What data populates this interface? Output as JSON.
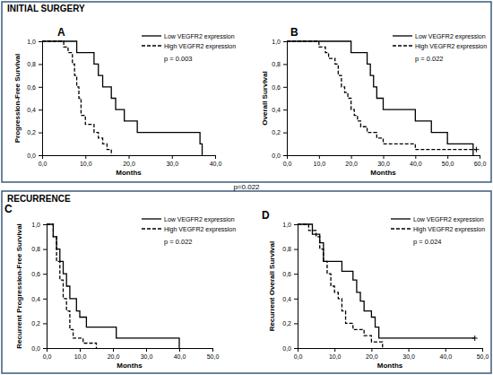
{
  "sections": [
    "INITIAL SURGERY",
    "RECURRENCE"
  ],
  "note": "p=0.022",
  "chart_data": [
    {
      "type": "line",
      "title": "A",
      "y_label": "Progression-Free Survival",
      "x_label": "Months",
      "annotation": "p = 0.003",
      "legend": "top-right",
      "grid": false,
      "xlim": [
        0,
        40
      ],
      "ylim": [
        0,
        1
      ],
      "xticks": [
        {
          "value": 0,
          "label": "0,0"
        },
        {
          "value": 10,
          "label": "10,0"
        },
        {
          "value": 20,
          "label": "20,0"
        },
        {
          "value": 30,
          "label": "30,0"
        },
        {
          "value": 40,
          "label": "40,0"
        }
      ],
      "yticks": [
        {
          "value": 0,
          "label": "0,0"
        },
        {
          "value": 0.2,
          "label": "0,2"
        },
        {
          "value": 0.4,
          "label": "0,4"
        },
        {
          "value": 0.6,
          "label": "0,6"
        },
        {
          "value": 0.8,
          "label": "0,8"
        },
        {
          "value": 1,
          "label": "1,0"
        }
      ],
      "series": [
        {
          "name": "Low VEGFR2 expression",
          "color": "#000000",
          "line_style": "solid",
          "x": [
            0,
            8,
            12,
            13,
            14,
            16,
            17,
            19,
            22,
            36.5,
            37
          ],
          "values": [
            1,
            0.9,
            0.8,
            0.7,
            0.6,
            0.5,
            0.4,
            0.3,
            0.2,
            0.1,
            0
          ]
        },
        {
          "name": "High VEGFR2 expression",
          "color": "#000000",
          "line_style": "dashed",
          "x": [
            0,
            5,
            6,
            7,
            7.5,
            8,
            8.5,
            9,
            10,
            12,
            13,
            14,
            15,
            16
          ],
          "values": [
            1,
            0.95,
            0.9,
            0.8,
            0.7,
            0.6,
            0.5,
            0.35,
            0.27,
            0.2,
            0.15,
            0.1,
            0.05,
            0
          ]
        }
      ]
    },
    {
      "type": "line",
      "title": "B",
      "y_label": "Overall Survival",
      "x_label": "Months",
      "annotation": "p = 0.022",
      "legend": "top-right",
      "grid": false,
      "xlim": [
        0,
        60
      ],
      "ylim": [
        0,
        1
      ],
      "xticks": [
        {
          "value": 0,
          "label": "0,0"
        },
        {
          "value": 10,
          "label": "10,0"
        },
        {
          "value": 20,
          "label": "20,0"
        },
        {
          "value": 30,
          "label": "30,0"
        },
        {
          "value": 40,
          "label": "40,0"
        },
        {
          "value": 50,
          "label": "50,0"
        },
        {
          "value": 60,
          "label": "60,0"
        }
      ],
      "yticks": [
        {
          "value": 0,
          "label": "0,0"
        },
        {
          "value": 0.2,
          "label": "0,2"
        },
        {
          "value": 0.4,
          "label": "0,4"
        },
        {
          "value": 0.6,
          "label": "0,6"
        },
        {
          "value": 0.8,
          "label": "0,8"
        },
        {
          "value": 1,
          "label": "1,0"
        }
      ],
      "series": [
        {
          "name": "Low VEGFR2 expression",
          "color": "#000000",
          "line_style": "solid",
          "x": [
            0,
            20,
            25,
            26,
            27,
            28,
            30,
            40,
            45,
            50,
            58
          ],
          "values": [
            1,
            0.9,
            0.8,
            0.7,
            0.6,
            0.5,
            0.4,
            0.3,
            0.2,
            0.1,
            0
          ]
        },
        {
          "name": "High VEGFR2 expression",
          "color": "#000000",
          "line_style": "dashed",
          "x": [
            0,
            10,
            12,
            13,
            15,
            16,
            17,
            18,
            19,
            20,
            21,
            22,
            23,
            25,
            28,
            30,
            40,
            59
          ],
          "values": [
            1,
            0.95,
            0.9,
            0.85,
            0.8,
            0.7,
            0.6,
            0.55,
            0.5,
            0.4,
            0.35,
            0.3,
            0.25,
            0.2,
            0.15,
            0.1,
            0.05,
            0.05
          ],
          "censored_x": [
            59
          ]
        }
      ]
    },
    {
      "type": "line",
      "title": "C",
      "y_label": "Recurrent Progression-Free Survival",
      "x_label": "Months",
      "annotation": "p = 0.022",
      "legend": "top-right",
      "grid": false,
      "xlim": [
        0,
        50
      ],
      "ylim": [
        0,
        1
      ],
      "xticks": [
        {
          "value": 0,
          "label": "0,0"
        },
        {
          "value": 10,
          "label": "10,0"
        },
        {
          "value": 20,
          "label": "20,0"
        },
        {
          "value": 30,
          "label": "30,0"
        },
        {
          "value": 40,
          "label": "40,0"
        },
        {
          "value": 50,
          "label": "50,0"
        }
      ],
      "yticks": [
        {
          "value": 0,
          "label": "0,0"
        },
        {
          "value": 0.2,
          "label": "0,2"
        },
        {
          "value": 0.4,
          "label": "0,4"
        },
        {
          "value": 0.6,
          "label": "0,6"
        },
        {
          "value": 0.8,
          "label": "0,8"
        },
        {
          "value": 1,
          "label": "1,0"
        }
      ],
      "series": [
        {
          "name": "Low VEGFR2 expression",
          "color": "#000000",
          "line_style": "solid",
          "x": [
            0,
            2,
            3,
            4,
            5,
            6,
            7,
            9,
            10,
            12,
            21,
            40
          ],
          "values": [
            1,
            0.9,
            0.8,
            0.7,
            0.6,
            0.5,
            0.4,
            0.3,
            0.25,
            0.17,
            0.08,
            0
          ]
        },
        {
          "name": "High VEGFR2 expression",
          "color": "#000000",
          "line_style": "dashed",
          "x": [
            0,
            2,
            3,
            4,
            5,
            6,
            7,
            8,
            11,
            15
          ],
          "values": [
            1,
            0.9,
            0.7,
            0.55,
            0.4,
            0.3,
            0.15,
            0.08,
            0.04,
            0
          ]
        }
      ]
    },
    {
      "type": "line",
      "title": "D",
      "y_label": "Recurrent Overall Survival",
      "x_label": "Months",
      "annotation": "p = 0.024",
      "legend": "top-right",
      "grid": false,
      "xlim": [
        0,
        50
      ],
      "ylim": [
        0,
        1
      ],
      "xticks": [
        {
          "value": 0,
          "label": "0,0"
        },
        {
          "value": 10,
          "label": "10,0"
        },
        {
          "value": 20,
          "label": "20,0"
        },
        {
          "value": 30,
          "label": "30,0"
        },
        {
          "value": 40,
          "label": "40,0"
        },
        {
          "value": 50,
          "label": "50,0"
        }
      ],
      "yticks": [
        {
          "value": 0,
          "label": "0,0"
        },
        {
          "value": 0.2,
          "label": "0,2"
        },
        {
          "value": 0.4,
          "label": "0,4"
        },
        {
          "value": 0.6,
          "label": "0,6"
        },
        {
          "value": 0.8,
          "label": "0,8"
        },
        {
          "value": 1,
          "label": "1,0"
        }
      ],
      "series": [
        {
          "name": "Low VEGFR2 expression",
          "color": "#000000",
          "line_style": "solid",
          "x": [
            0,
            4,
            6,
            7,
            12,
            15,
            16,
            17,
            18,
            20,
            21,
            22,
            48
          ],
          "values": [
            1,
            0.92,
            0.85,
            0.7,
            0.62,
            0.55,
            0.45,
            0.38,
            0.3,
            0.25,
            0.17,
            0.08,
            0.08
          ],
          "censored_x": [
            48
          ]
        },
        {
          "name": "High VEGFR2 expression",
          "color": "#000000",
          "line_style": "dashed",
          "x": [
            0,
            3,
            5,
            6,
            7,
            8,
            9,
            10,
            11,
            12,
            13,
            15,
            18,
            20,
            23
          ],
          "values": [
            1,
            0.95,
            0.9,
            0.8,
            0.7,
            0.6,
            0.5,
            0.45,
            0.4,
            0.3,
            0.2,
            0.15,
            0.1,
            0.05,
            0
          ]
        }
      ]
    }
  ]
}
